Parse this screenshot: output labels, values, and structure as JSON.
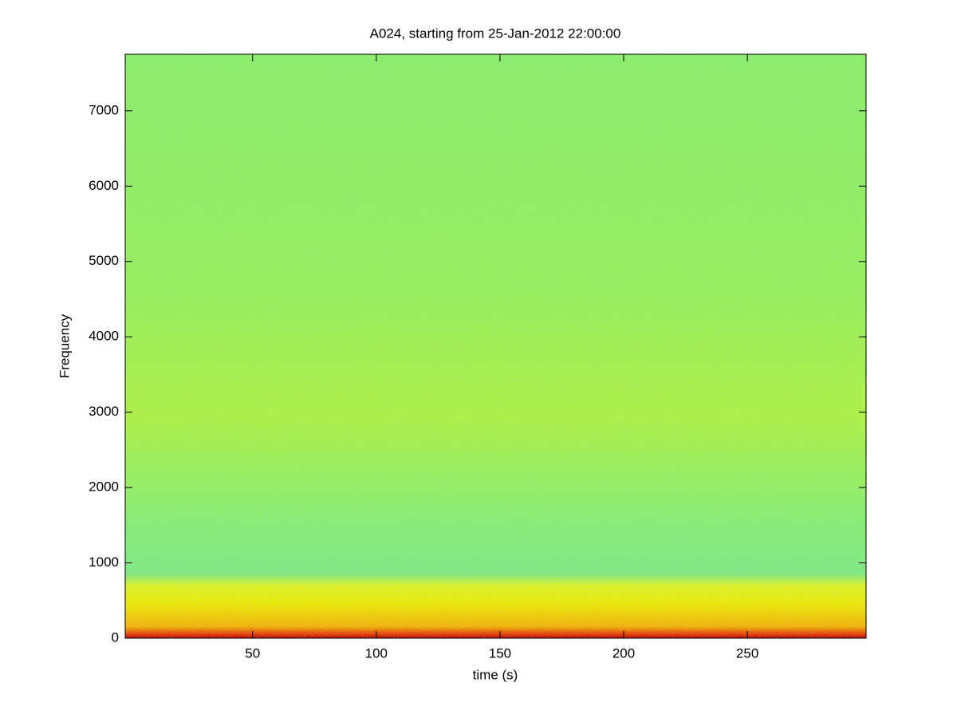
{
  "chart_data": {
    "type": "spectrogram",
    "title": "A024, starting from 25-Jan-2012 22:00:00",
    "x_label": "time (s)",
    "y_label": "Frequency",
    "xlim": [
      -1.5,
      298
    ],
    "xticks": [
      50,
      100,
      150,
      200,
      250
    ],
    "ylim": [
      0,
      7750
    ],
    "yticks": [
      0,
      1000,
      2000,
      3000,
      4000,
      5000,
      6000,
      7000
    ]
  }
}
